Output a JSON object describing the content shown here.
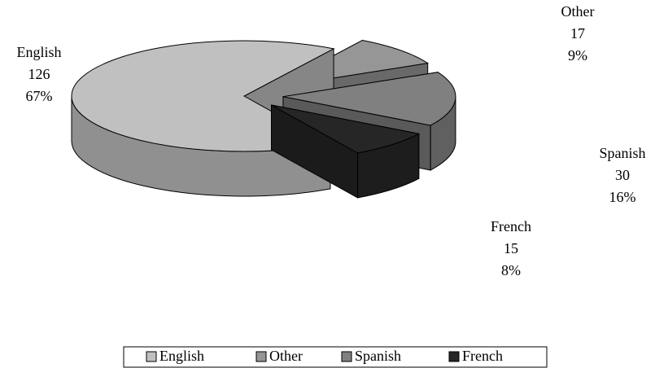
{
  "chart_data": {
    "type": "pie3d",
    "categories": [
      "English",
      "Other",
      "Spanish",
      "French"
    ],
    "values": [
      126,
      17,
      30,
      15
    ],
    "percent_labels": [
      "67%",
      "9%",
      "16%",
      "8%"
    ],
    "colors": [
      "#c0c0c0",
      "#969696",
      "#808080",
      "#262626"
    ],
    "legend": "bottom"
  }
}
